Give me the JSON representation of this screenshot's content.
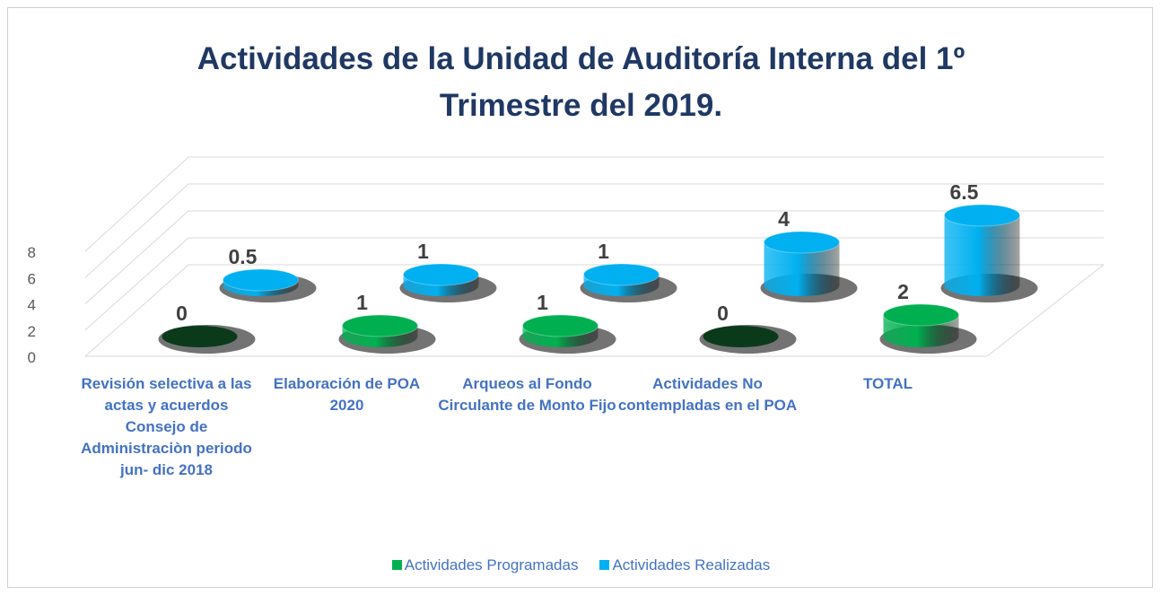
{
  "chart_data": {
    "type": "bar3d",
    "title": "Actividades de la Unidad de Auditoría Interna del 1º Trimestre del 2019.",
    "categories": [
      "Revisión selectiva a las actas y acuerdos  Consejo de Administraciòn periodo jun- dic 2018",
      "Elaboración de POA 2020",
      "Arqueos al Fondo Circulante de Monto Fijo",
      "Actividades No contempladas en el POA",
      "TOTAL"
    ],
    "series": [
      {
        "name": "Actividades Programadas",
        "color": "#00b050",
        "values": [
          0,
          1,
          1,
          0,
          2
        ]
      },
      {
        "name": "Actividades Realizadas",
        "color": "#00b0f0",
        "values": [
          0.5,
          1,
          1,
          4,
          6.5
        ]
      }
    ],
    "ylim": [
      0,
      8
    ],
    "yticks": [
      0,
      2,
      4,
      6,
      8
    ],
    "grid": true,
    "legend": "bottom"
  }
}
